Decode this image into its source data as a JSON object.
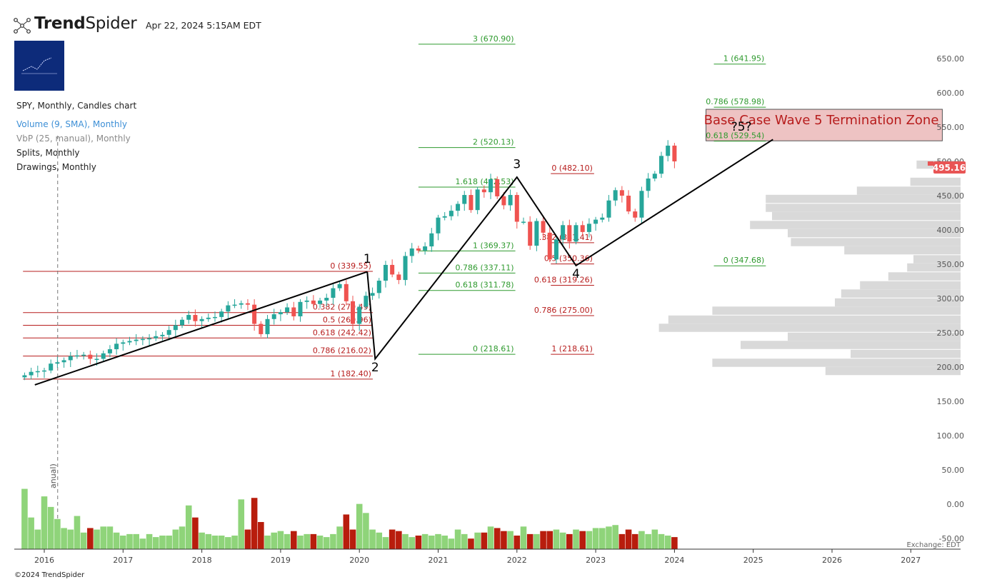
{
  "brand": {
    "name_bold": "Trend",
    "name_light": "Spider"
  },
  "timestamp": "Apr 22, 2024 5:15AM EDT",
  "legend": [
    {
      "text": "SPY, Monthly, Candles chart",
      "color": "#222222"
    },
    {
      "text": "Volume (9, SMA), Monthly",
      "color": "#3d8fd6"
    },
    {
      "text": "VbP (25, manual), Monthly",
      "color": "#8a8a8a"
    },
    {
      "text": "Splits, Monthly",
      "color": "#222222"
    },
    {
      "text": "Drawings, Monthly",
      "color": "#222222"
    }
  ],
  "volume_axis_label": "anual)",
  "footer": {
    "copyright": "©2024 TrendSpider",
    "exchange": "Exchange: EDT"
  },
  "price_badge": {
    "value": "495.16",
    "color": "#e85555"
  },
  "colors": {
    "up": "#26a69a",
    "down": "#ef5350",
    "vol_up": "#8fd47a",
    "vol_down": "#b81d0d",
    "fib_red": "#b71c1c",
    "fib_green": "#2e9a2e",
    "vbp": "#d9d9d9"
  },
  "chart_data": {
    "type": "candlestick",
    "symbol": "SPY",
    "interval": "Monthly",
    "xlim": [
      2015.7,
      2027.6
    ],
    "ylim": [
      -55,
      690
    ],
    "x_ticks": [
      "2016",
      "2017",
      "2018",
      "2019",
      "2020",
      "2021",
      "2022",
      "2023",
      "2024",
      "2025",
      "2026",
      "2027"
    ],
    "y_ticks": [
      "650.00",
      "600.00",
      "550.00",
      "500.00",
      "450.00",
      "400.00",
      "350.00",
      "300.00",
      "250.00",
      "200.00",
      "150.00",
      "100.00",
      "50.00",
      "0.00",
      "-50.00"
    ],
    "closes": [
      188,
      193,
      194,
      195,
      205,
      207,
      210,
      216,
      217,
      218,
      212,
      212,
      220,
      226,
      234,
      236,
      238,
      240,
      241,
      242,
      245,
      247,
      254,
      261,
      269,
      276,
      267,
      270,
      272,
      273,
      281,
      290,
      291,
      293,
      291,
      263,
      248,
      270,
      277,
      280,
      287,
      274,
      295,
      297,
      292,
      297,
      301,
      315,
      321,
      296,
      263,
      288,
      304,
      308,
      326,
      349,
      335,
      327,
      362,
      373,
      370,
      376,
      395,
      418,
      420,
      428,
      438,
      451,
      429,
      459,
      455,
      474,
      449,
      436,
      451,
      412,
      412,
      377,
      413,
      396,
      357,
      386,
      407,
      383,
      407,
      397,
      409,
      415,
      418,
      443,
      458,
      450,
      427,
      418,
      457,
      475,
      482,
      508,
      523,
      500
    ],
    "volumes": [
      40,
      21,
      13,
      35,
      28,
      20,
      14,
      13,
      22,
      11,
      14,
      13,
      15,
      15,
      11,
      9,
      10,
      10,
      7,
      10,
      8,
      9,
      9,
      13,
      15,
      29,
      21,
      11,
      10,
      9,
      9,
      8,
      9,
      33,
      13,
      34,
      18,
      9,
      11,
      12,
      10,
      12,
      9,
      10,
      10,
      9,
      8,
      10,
      15,
      23,
      13,
      30,
      24,
      13,
      11,
      8,
      13,
      12,
      10,
      8,
      9,
      10,
      9,
      10,
      9,
      7,
      13,
      10,
      7,
      11,
      11,
      15,
      14,
      12,
      12,
      9,
      15,
      10,
      10,
      12,
      12,
      13,
      11,
      10,
      13,
      12,
      12,
      14,
      14,
      15,
      16,
      10,
      13,
      10,
      12,
      10,
      13,
      10,
      9,
      8
    ],
    "vbp_profile": [
      {
        "price": 495,
        "length": 0.14
      },
      {
        "price": 470,
        "length": 0.16
      },
      {
        "price": 457,
        "length": 0.33
      },
      {
        "price": 445,
        "length": 0.62
      },
      {
        "price": 432,
        "length": 0.62
      },
      {
        "price": 420,
        "length": 0.6
      },
      {
        "price": 407,
        "length": 0.67
      },
      {
        "price": 395,
        "length": 0.55
      },
      {
        "price": 382,
        "length": 0.54
      },
      {
        "price": 370,
        "length": 0.37
      },
      {
        "price": 357,
        "length": 0.15
      },
      {
        "price": 345,
        "length": 0.17
      },
      {
        "price": 332,
        "length": 0.23
      },
      {
        "price": 319,
        "length": 0.32
      },
      {
        "price": 307,
        "length": 0.38
      },
      {
        "price": 294,
        "length": 0.4
      },
      {
        "price": 282,
        "length": 0.79
      },
      {
        "price": 269,
        "length": 0.93
      },
      {
        "price": 257,
        "length": 0.96
      },
      {
        "price": 244,
        "length": 0.55
      },
      {
        "price": 232,
        "length": 0.7
      },
      {
        "price": 219,
        "length": 0.35
      },
      {
        "price": 206,
        "length": 0.79
      },
      {
        "price": 194,
        "length": 0.43
      }
    ],
    "fib_levels": [
      {
        "label": "0 (339.55)",
        "price": 339.55,
        "x0": 2015.73,
        "x1": 2020.17,
        "color": "red"
      },
      {
        "label": "0.382 (279.49)",
        "price": 279.49,
        "x0": 2015.73,
        "x1": 2020.17,
        "color": "red"
      },
      {
        "label": "0.5 (260.96)",
        "price": 260.96,
        "x0": 2015.73,
        "x1": 2020.17,
        "color": "red"
      },
      {
        "label": "0.618 (242.42)",
        "price": 242.42,
        "x0": 2015.73,
        "x1": 2020.17,
        "color": "red"
      },
      {
        "label": "0.786 (216.02)",
        "price": 216.02,
        "x0": 2015.73,
        "x1": 2020.17,
        "color": "red"
      },
      {
        "label": "1 (182.40)",
        "price": 182.4,
        "x0": 2015.73,
        "x1": 2020.17,
        "color": "red"
      },
      {
        "label": "3 (670.90)",
        "price": 670.9,
        "x0": 2020.75,
        "x1": 2021.98,
        "color": "green"
      },
      {
        "label": "2 (520.13)",
        "price": 520.13,
        "x0": 2020.75,
        "x1": 2021.98,
        "color": "green"
      },
      {
        "label": "1.618 (462.53)",
        "price": 462.53,
        "x0": 2020.75,
        "x1": 2021.98,
        "color": "green"
      },
      {
        "label": "1 (369.37)",
        "price": 369.37,
        "x0": 2020.75,
        "x1": 2021.98,
        "color": "green"
      },
      {
        "label": "0.786 (337.11)",
        "price": 337.11,
        "x0": 2020.75,
        "x1": 2021.98,
        "color": "green"
      },
      {
        "label": "0.618 (311.78)",
        "price": 311.78,
        "x0": 2020.75,
        "x1": 2021.98,
        "color": "green"
      },
      {
        "label": "0 (218.61)",
        "price": 218.61,
        "x0": 2020.75,
        "x1": 2021.98,
        "color": "green"
      },
      {
        "label": "0 (482.10)",
        "price": 482.1,
        "x0": 2022.43,
        "x1": 2022.98,
        "color": "red"
      },
      {
        "label": "0.382 (381.41)",
        "price": 381.41,
        "x0": 2022.43,
        "x1": 2022.98,
        "color": "red"
      },
      {
        "label": "0.5 (350.36)",
        "price": 350.36,
        "x0": 2022.43,
        "x1": 2022.98,
        "color": "red"
      },
      {
        "label": "0.618 (319.26)",
        "price": 319.26,
        "x0": 2022.43,
        "x1": 2022.98,
        "color": "red"
      },
      {
        "label": "0.786 (275.00)",
        "price": 275.0,
        "x0": 2022.43,
        "x1": 2022.98,
        "color": "red"
      },
      {
        "label": "1 (218.61)",
        "price": 218.61,
        "x0": 2022.43,
        "x1": 2022.98,
        "color": "red"
      },
      {
        "label": "1 (641.95)",
        "price": 641.95,
        "x0": 2024.5,
        "x1": 2025.16,
        "color": "green"
      },
      {
        "label": "0.786 (578.98)",
        "price": 578.98,
        "x0": 2024.5,
        "x1": 2025.16,
        "color": "green"
      },
      {
        "label": "0.618 (529.54)",
        "price": 529.54,
        "x0": 2024.5,
        "x1": 2025.16,
        "color": "green"
      },
      {
        "label": "0 (347.68)",
        "price": 347.68,
        "x0": 2024.5,
        "x1": 2025.16,
        "color": "green"
      }
    ],
    "wave_lines": [
      {
        "points": [
          [
            2015.88,
            174
          ],
          [
            2020.1,
            339
          ]
        ]
      },
      {
        "points": [
          [
            2020.1,
            339
          ],
          [
            2020.2,
            212
          ],
          [
            2022.0,
            477
          ],
          [
            2022.75,
            348
          ],
          [
            2025.25,
            532
          ]
        ]
      }
    ],
    "wave_labels": [
      {
        "text": "1",
        "x": 2020.1,
        "price": 352
      },
      {
        "text": "2",
        "x": 2020.2,
        "price": 194
      },
      {
        "text": "3",
        "x": 2022.0,
        "price": 490
      },
      {
        "text": "4",
        "x": 2022.75,
        "price": 330
      },
      {
        "text": "?5?",
        "x": 2024.85,
        "price": 545
      }
    ],
    "zone": {
      "label": "Base Case Wave 5 Termination Zone",
      "x0": 2024.4,
      "x1": 2027.4,
      "top": 576,
      "bottom": 530
    },
    "marker_line_x": 2016.17
  }
}
